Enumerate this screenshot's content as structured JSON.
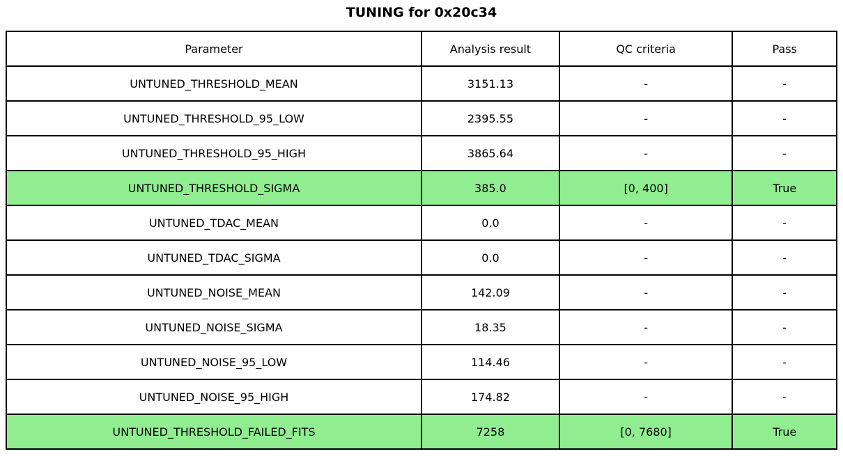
{
  "title": "TUNING for 0x20c34",
  "colors": {
    "background": "#ffffff",
    "border": "#000000",
    "text": "#000000",
    "highlight": "#90ee90"
  },
  "table": {
    "headers": [
      "Parameter",
      "Analysis result",
      "QC criteria",
      "Pass"
    ],
    "rows": [
      {
        "parameter": "UNTUNED_THRESHOLD_MEAN",
        "result": "3151.13",
        "criteria": "-",
        "pass": "-",
        "highlight": false
      },
      {
        "parameter": "UNTUNED_THRESHOLD_95_LOW",
        "result": "2395.55",
        "criteria": "-",
        "pass": "-",
        "highlight": false
      },
      {
        "parameter": "UNTUNED_THRESHOLD_95_HIGH",
        "result": "3865.64",
        "criteria": "-",
        "pass": "-",
        "highlight": false
      },
      {
        "parameter": "UNTUNED_THRESHOLD_SIGMA",
        "result": "385.0",
        "criteria": "[0, 400]",
        "pass": "True",
        "highlight": true
      },
      {
        "parameter": "UNTUNED_TDAC_MEAN",
        "result": "0.0",
        "criteria": "-",
        "pass": "-",
        "highlight": false
      },
      {
        "parameter": "UNTUNED_TDAC_SIGMA",
        "result": "0.0",
        "criteria": "-",
        "pass": "-",
        "highlight": false
      },
      {
        "parameter": "UNTUNED_NOISE_MEAN",
        "result": "142.09",
        "criteria": "-",
        "pass": "-",
        "highlight": false
      },
      {
        "parameter": "UNTUNED_NOISE_SIGMA",
        "result": "18.35",
        "criteria": "-",
        "pass": "-",
        "highlight": false
      },
      {
        "parameter": "UNTUNED_NOISE_95_LOW",
        "result": "114.46",
        "criteria": "-",
        "pass": "-",
        "highlight": false
      },
      {
        "parameter": "UNTUNED_NOISE_95_HIGH",
        "result": "174.82",
        "criteria": "-",
        "pass": "-",
        "highlight": false
      },
      {
        "parameter": "UNTUNED_THRESHOLD_FAILED_FITS",
        "result": "7258",
        "criteria": "[0, 7680]",
        "pass": "True",
        "highlight": true
      }
    ]
  },
  "chart_data": {
    "type": "table",
    "title": "TUNING for 0x20c34",
    "columns": [
      "Parameter",
      "Analysis result",
      "QC criteria",
      "Pass"
    ],
    "rows": [
      [
        "UNTUNED_THRESHOLD_MEAN",
        "3151.13",
        "-",
        "-"
      ],
      [
        "UNTUNED_THRESHOLD_95_LOW",
        "2395.55",
        "-",
        "-"
      ],
      [
        "UNTUNED_THRESHOLD_95_HIGH",
        "3865.64",
        "-",
        "-"
      ],
      [
        "UNTUNED_THRESHOLD_SIGMA",
        "385.0",
        "[0, 400]",
        "True"
      ],
      [
        "UNTUNED_TDAC_MEAN",
        "0.0",
        "-",
        "-"
      ],
      [
        "UNTUNED_TDAC_SIGMA",
        "0.0",
        "-",
        "-"
      ],
      [
        "UNTUNED_NOISE_MEAN",
        "142.09",
        "-",
        "-"
      ],
      [
        "UNTUNED_NOISE_SIGMA",
        "18.35",
        "-",
        "-"
      ],
      [
        "UNTUNED_NOISE_95_LOW",
        "114.46",
        "-",
        "-"
      ],
      [
        "UNTUNED_NOISE_95_HIGH",
        "174.82",
        "-",
        "-"
      ],
      [
        "UNTUNED_THRESHOLD_FAILED_FITS",
        "7258",
        "[0, 7680]",
        "True"
      ]
    ],
    "highlighted_rows": [
      "UNTUNED_THRESHOLD_SIGMA",
      "UNTUNED_THRESHOLD_FAILED_FITS"
    ],
    "highlight_color": "#90ee90",
    "layout": {
      "grid": true,
      "border_color": "#000000",
      "text_align": "center"
    }
  }
}
